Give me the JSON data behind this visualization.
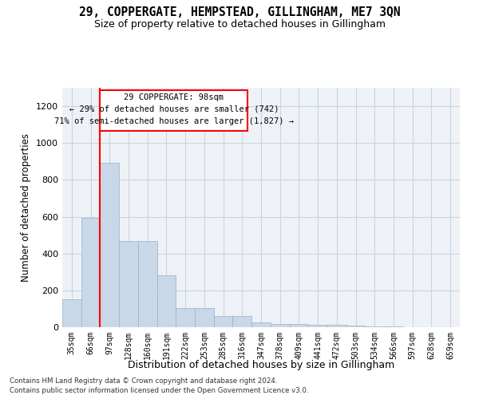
{
  "title": "29, COPPERGATE, HEMPSTEAD, GILLINGHAM, ME7 3QN",
  "subtitle": "Size of property relative to detached houses in Gillingham",
  "xlabel": "Distribution of detached houses by size in Gillingham",
  "ylabel": "Number of detached properties",
  "bar_color": "#c8d8e8",
  "bar_edge_color": "#9ab0c8",
  "categories": [
    "35sqm",
    "66sqm",
    "97sqm",
    "128sqm",
    "160sqm",
    "191sqm",
    "222sqm",
    "253sqm",
    "285sqm",
    "316sqm",
    "347sqm",
    "378sqm",
    "409sqm",
    "441sqm",
    "472sqm",
    "503sqm",
    "534sqm",
    "566sqm",
    "597sqm",
    "628sqm",
    "659sqm"
  ],
  "values": [
    152,
    592,
    893,
    470,
    470,
    283,
    105,
    105,
    60,
    60,
    28,
    18,
    18,
    14,
    14,
    10,
    5,
    3,
    2,
    1,
    1
  ],
  "ylim": [
    0,
    1300
  ],
  "yticks": [
    0,
    200,
    400,
    600,
    800,
    1000,
    1200
  ],
  "property_label": "29 COPPERGATE: 98sqm",
  "annotation_line1": "← 29% of detached houses are smaller (742)",
  "annotation_line2": "71% of semi-detached houses are larger (1,827) →",
  "box_color": "red",
  "vline_color": "red",
  "footer1": "Contains HM Land Registry data © Crown copyright and database right 2024.",
  "footer2": "Contains public sector information licensed under the Open Government Licence v3.0.",
  "background_color": "#eef2f7",
  "grid_color": "#c8d4e0"
}
